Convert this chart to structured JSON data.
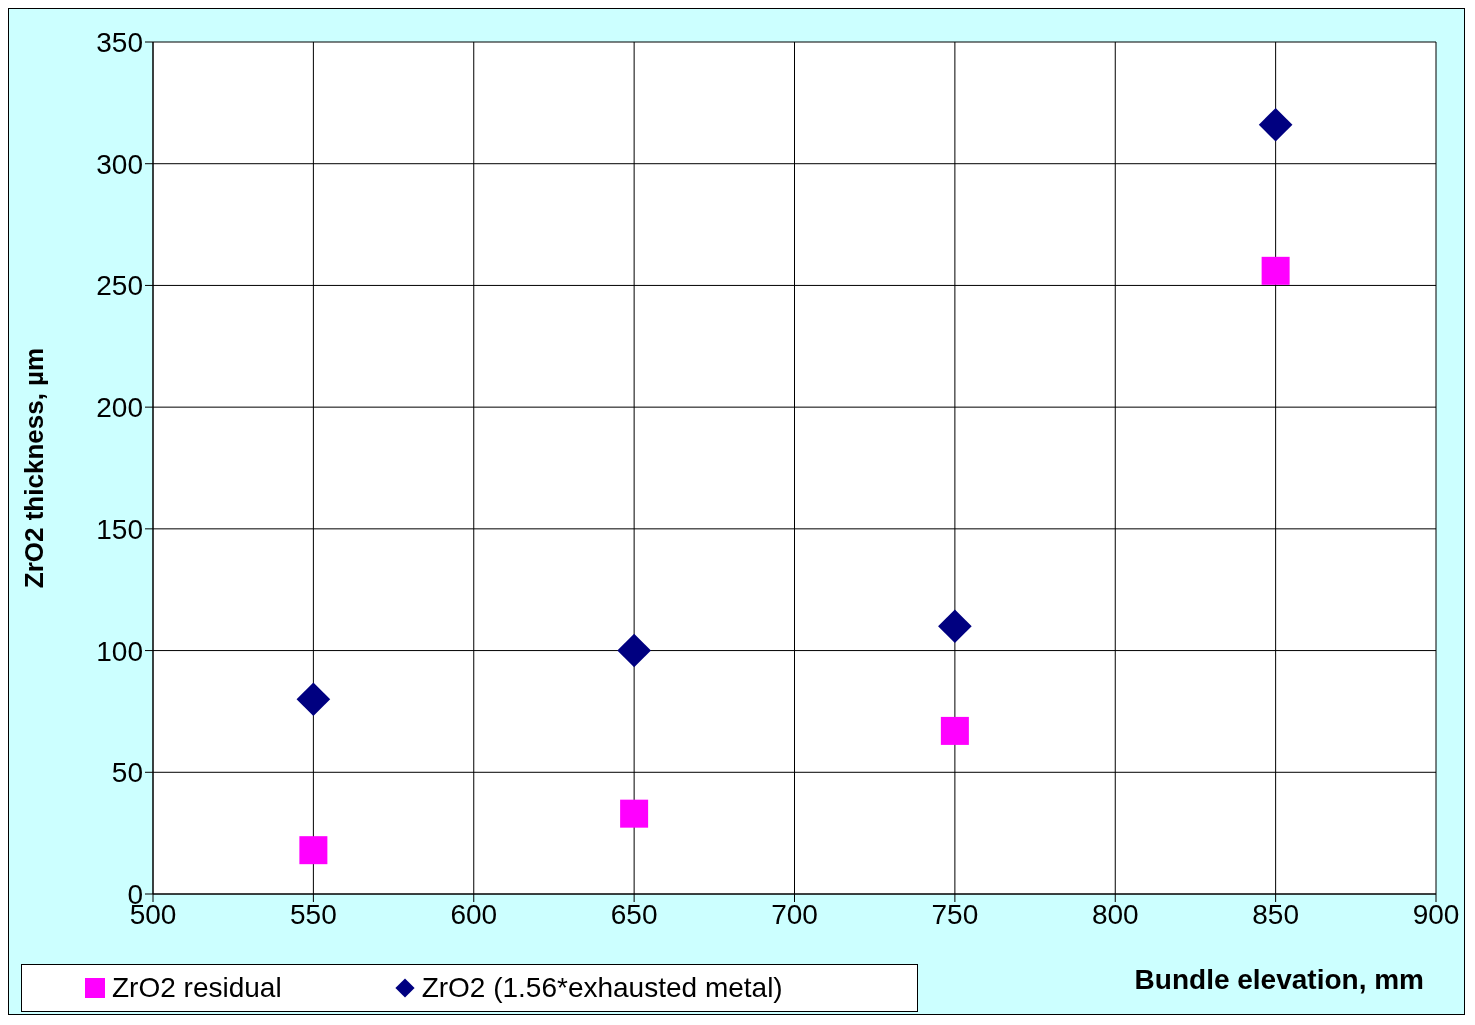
{
  "chart_data": {
    "type": "scatter",
    "xlabel": "Bundle elevation, mm",
    "ylabel": "ZrO2 thickness, µm",
    "x": [
      550,
      650,
      750,
      850
    ],
    "series": [
      {
        "name": "ZrO2 residual",
        "color": "#ff00ff",
        "marker": "square",
        "values": [
          18,
          33,
          67,
          256
        ]
      },
      {
        "name": "ZrO2 (1.56*exhausted metal)",
        "color": "#000080",
        "marker": "diamond",
        "values": [
          80,
          100,
          110,
          316
        ]
      }
    ],
    "xlim": [
      500,
      900
    ],
    "xticks": [
      500,
      550,
      600,
      650,
      700,
      750,
      800,
      850,
      900
    ],
    "ylim": [
      0,
      350
    ],
    "yticks": [
      0,
      50,
      100,
      150,
      200,
      250,
      300,
      350
    ],
    "grid": true,
    "legend": "bottom left"
  }
}
